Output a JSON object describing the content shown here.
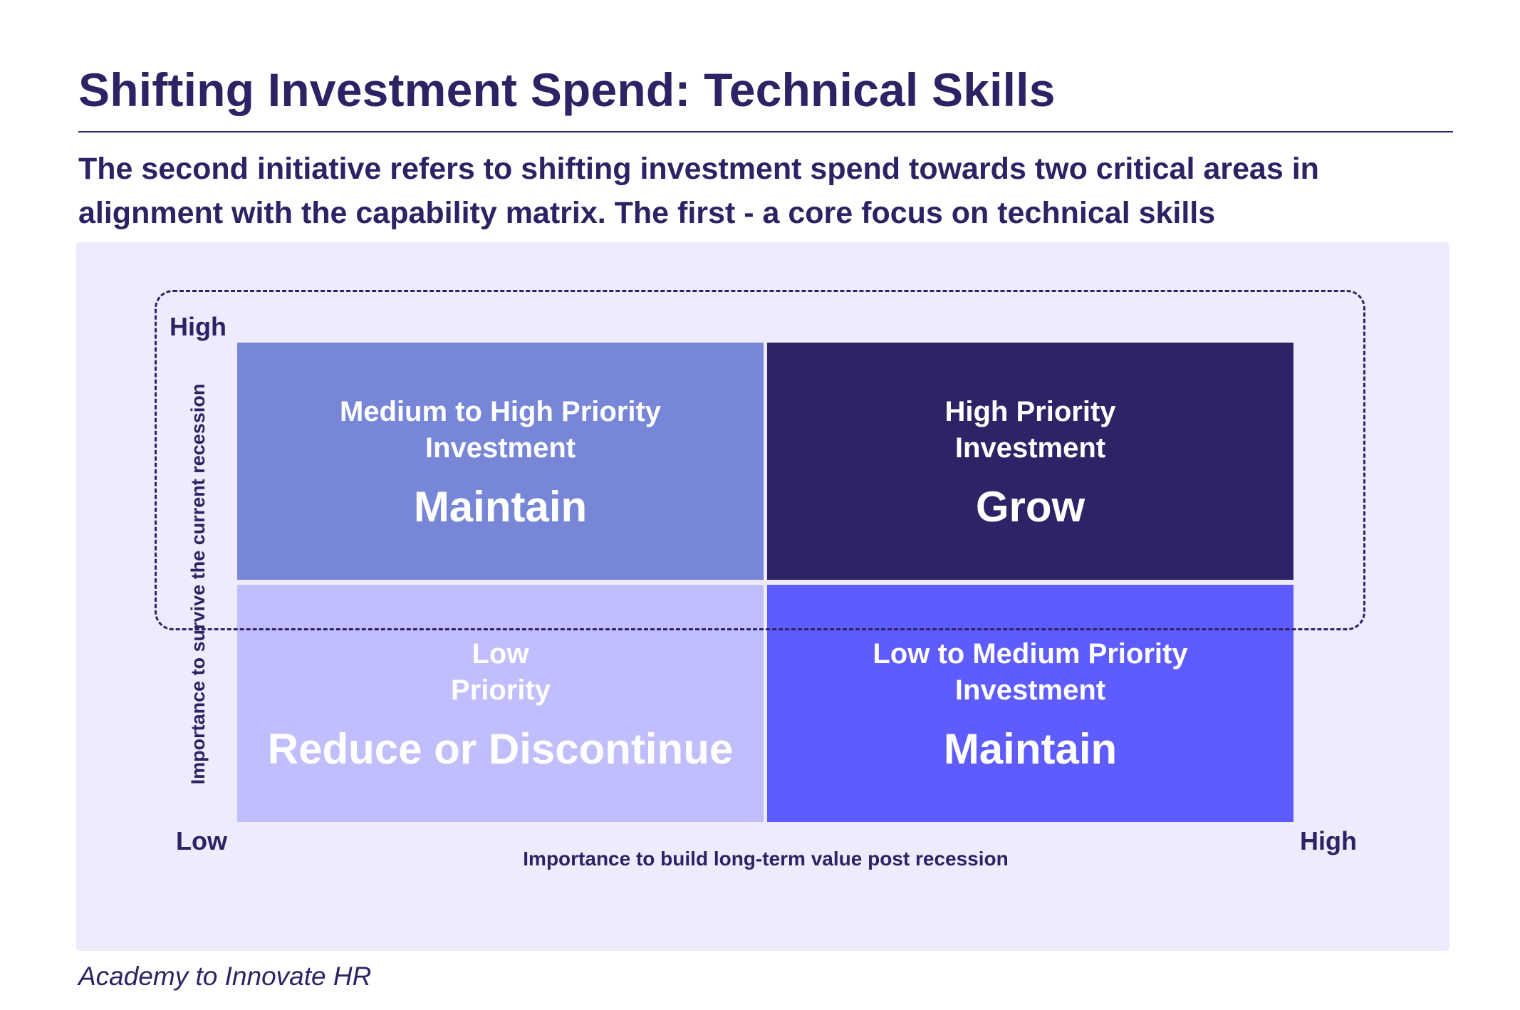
{
  "title": "Shifting Investment Spend: Technical Skills",
  "subtitle": "The second initiative refers to shifting investment spend towards two critical areas in alignment with the capability matrix. The first -  a core focus on technical skills",
  "matrix": {
    "y_axis": {
      "label": "Importance to survive the current recession",
      "high": "High"
    },
    "x_axis": {
      "label": "Importance to build long-term value post recession",
      "low": "Low",
      "high": "High"
    },
    "quadrants": {
      "top_left": {
        "priority": "Medium to High Priority Investment",
        "action": "Maintain",
        "color": "#7886d7"
      },
      "top_right": {
        "priority": "High Priority Investment",
        "action": "Grow",
        "color": "#2f2266"
      },
      "bottom_left": {
        "priority": "Low Priority",
        "action": "Reduce or Discontinue",
        "color": "#c0befc"
      },
      "bottom_right": {
        "priority": "Low to Medium Priority Investment",
        "action": "Maintain",
        "color": "#5e5cff"
      }
    }
  },
  "footer": "Academy to Innovate HR"
}
